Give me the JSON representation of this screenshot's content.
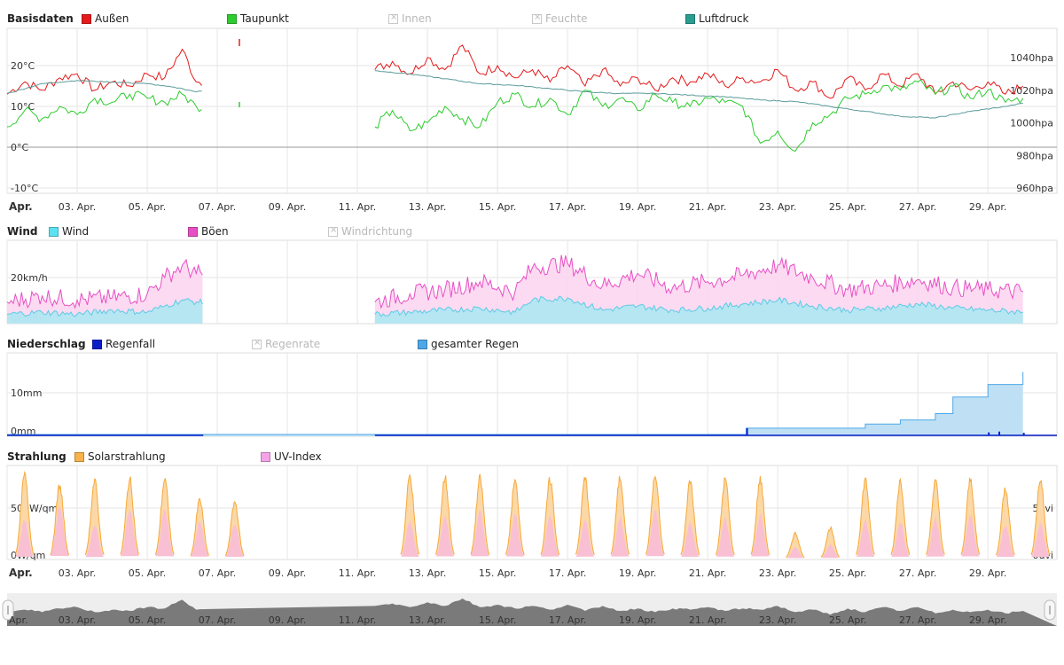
{
  "panels": {
    "basis": {
      "title": "Basisdaten",
      "legend": [
        {
          "label": "Außen",
          "color": "#e41a1c",
          "enabled": true
        },
        {
          "label": "Taupunkt",
          "color": "#2ecc2e",
          "enabled": true
        },
        {
          "label": "Innen",
          "color": "#cccccc",
          "enabled": false
        },
        {
          "label": "Feuchte",
          "color": "#cccccc",
          "enabled": false
        },
        {
          "label": "Luftdruck",
          "color": "#2a9d8f",
          "enabled": true
        }
      ],
      "y_left_ticks": [
        "20°C",
        "10°C",
        "0°C",
        "-10°C"
      ],
      "y_right_ticks": [
        "1040hpa",
        "1020hpa",
        "1000hpa",
        "980hpa",
        "960hpa"
      ]
    },
    "wind": {
      "title": "Wind",
      "legend": [
        {
          "label": "Wind",
          "color": "#5ce1f0",
          "enabled": true
        },
        {
          "label": "Böen",
          "color": "#e84fc4",
          "enabled": true
        },
        {
          "label": "Windrichtung",
          "color": "#cccccc",
          "enabled": false
        }
      ],
      "y_left_ticks": [
        "20km/h",
        "0km/h"
      ]
    },
    "rain": {
      "title": "Niederschlag",
      "legend": [
        {
          "label": "Regenfall",
          "color": "#0b1fc6",
          "enabled": true
        },
        {
          "label": "Regenrate",
          "color": "#cccccc",
          "enabled": false
        },
        {
          "label": "gesamter Regen",
          "color": "#4ea7e8",
          "enabled": true
        }
      ],
      "y_left_ticks": [
        "10mm",
        "0mm"
      ]
    },
    "solar": {
      "title": "Strahlung",
      "legend": [
        {
          "label": "Solarstrahlung",
          "color": "#f7b24a",
          "enabled": true
        },
        {
          "label": "UV-Index",
          "color": "#f4a3e8",
          "enabled": true
        }
      ],
      "y_left_ticks": [
        "500W/qm",
        "0W/qm"
      ],
      "y_right_ticks": [
        "5uvi",
        "0uvi"
      ]
    }
  },
  "x_axis": {
    "first_label": "Apr.",
    "labels": [
      "03. Apr.",
      "05. Apr.",
      "07. Apr.",
      "09. Apr.",
      "11. Apr.",
      "13. Apr.",
      "15. Apr.",
      "17. Apr.",
      "19. Apr.",
      "21. Apr.",
      "23. Apr.",
      "25. Apr.",
      "27. Apr.",
      "29. Apr."
    ]
  },
  "navigator": {
    "first_label": "Apr.",
    "labels": [
      "03. Apr.",
      "05. Apr.",
      "07. Apr.",
      "09. Apr.",
      "11. Apr.",
      "13. Apr.",
      "15. Apr.",
      "17. Apr.",
      "19. Apr.",
      "21. Apr.",
      "23. Apr.",
      "25. Apr.",
      "27. Apr.",
      "29. Apr."
    ]
  },
  "chart_data": [
    {
      "type": "line",
      "title": "Basisdaten",
      "x_range": [
        "2024-04-01",
        "2024-04-30"
      ],
      "y_left": {
        "unit": "°C",
        "range": [
          -10,
          30
        ]
      },
      "y_right": {
        "unit": "hpa",
        "range": [
          960,
          1060
        ]
      },
      "gap_days": [
        6.6,
        11.5
      ],
      "series": [
        {
          "name": "Außen",
          "axis": "left",
          "points": [
            [
              1,
              13
            ],
            [
              1.5,
              16
            ],
            [
              2,
              14
            ],
            [
              2.5,
              17
            ],
            [
              3,
              18
            ],
            [
              3.5,
              14
            ],
            [
              4,
              16
            ],
            [
              4.5,
              15
            ],
            [
              5,
              18
            ],
            [
              5.5,
              17
            ],
            [
              6,
              24
            ],
            [
              6.4,
              16
            ],
            [
              11.5,
              19
            ],
            [
              12,
              21
            ],
            [
              12.5,
              18
            ],
            [
              13,
              22
            ],
            [
              13.5,
              19
            ],
            [
              14,
              25
            ],
            [
              14.5,
              18
            ],
            [
              15,
              20
            ],
            [
              15.5,
              17
            ],
            [
              16,
              19
            ],
            [
              16.5,
              16
            ],
            [
              17,
              20
            ],
            [
              17.5,
              15
            ],
            [
              18,
              19
            ],
            [
              18.5,
              15
            ],
            [
              19,
              17
            ],
            [
              19.5,
              14
            ],
            [
              20,
              17
            ],
            [
              20.5,
              16
            ],
            [
              21,
              18
            ],
            [
              21.5,
              15
            ],
            [
              22,
              17
            ],
            [
              22.5,
              16
            ],
            [
              23,
              19
            ],
            [
              23.5,
              14
            ],
            [
              24,
              16
            ],
            [
              24.5,
              12
            ],
            [
              25,
              17
            ],
            [
              25.5,
              14
            ],
            [
              26,
              18
            ],
            [
              26.5,
              15
            ],
            [
              27,
              18
            ],
            [
              27.5,
              13
            ],
            [
              28,
              16
            ],
            [
              28.5,
              14
            ],
            [
              29,
              16
            ],
            [
              29.5,
              13
            ],
            [
              30,
              15
            ]
          ]
        },
        {
          "name": "Taupunkt",
          "axis": "left",
          "points": [
            [
              1,
              5
            ],
            [
              1.5,
              9
            ],
            [
              2,
              7
            ],
            [
              2.5,
              10
            ],
            [
              3,
              8
            ],
            [
              3.5,
              12
            ],
            [
              4,
              11
            ],
            [
              4.5,
              13
            ],
            [
              5,
              12
            ],
            [
              5.5,
              11
            ],
            [
              6,
              13
            ],
            [
              6.4,
              10
            ],
            [
              11.5,
              5
            ],
            [
              12,
              9
            ],
            [
              12.5,
              4
            ],
            [
              13,
              6
            ],
            [
              13.5,
              10
            ],
            [
              14,
              7
            ],
            [
              14.5,
              5
            ],
            [
              15,
              11
            ],
            [
              15.5,
              13
            ],
            [
              16,
              10
            ],
            [
              16.5,
              12
            ],
            [
              17,
              8
            ],
            [
              17.5,
              14
            ],
            [
              18,
              10
            ],
            [
              18.5,
              12
            ],
            [
              19,
              9
            ],
            [
              19.5,
              13
            ],
            [
              20,
              11
            ],
            [
              20.5,
              10
            ],
            [
              21,
              12
            ],
            [
              21.5,
              11
            ],
            [
              22,
              10
            ],
            [
              22.5,
              1
            ],
            [
              23,
              4
            ],
            [
              23.5,
              -1
            ],
            [
              24,
              6
            ],
            [
              24.5,
              8
            ],
            [
              25,
              12
            ],
            [
              25.5,
              13
            ],
            [
              26,
              15
            ],
            [
              26.5,
              14
            ],
            [
              27,
              16
            ],
            [
              27.5,
              13
            ],
            [
              28,
              15
            ],
            [
              28.5,
              12
            ],
            [
              29,
              14
            ],
            [
              29.5,
              11
            ],
            [
              30,
              12
            ]
          ]
        },
        {
          "name": "Luftdruck",
          "axis": "right",
          "points": [
            [
              1,
              1018
            ],
            [
              2,
              1024
            ],
            [
              3,
              1026
            ],
            [
              4,
              1025
            ],
            [
              5,
              1024
            ],
            [
              6,
              1021
            ],
            [
              6.4,
              1019
            ],
            [
              11.5,
              1032
            ],
            [
              12.5,
              1030
            ],
            [
              13.5,
              1027
            ],
            [
              14.5,
              1024
            ],
            [
              15.5,
              1023
            ],
            [
              16.5,
              1021
            ],
            [
              17.5,
              1019
            ],
            [
              18.5,
              1018
            ],
            [
              19.5,
              1018
            ],
            [
              20.5,
              1017
            ],
            [
              21.5,
              1016
            ],
            [
              22.5,
              1014
            ],
            [
              23.5,
              1013
            ],
            [
              24.5,
              1010
            ],
            [
              25.5,
              1007
            ],
            [
              26.5,
              1004
            ],
            [
              27.5,
              1003
            ],
            [
              28.5,
              1007
            ],
            [
              29.5,
              1010
            ],
            [
              30,
              1012
            ]
          ]
        }
      ]
    },
    {
      "type": "area",
      "title": "Wind",
      "y_left": {
        "unit": "km/h",
        "range": [
          0,
          30
        ]
      },
      "gap_days": [
        6.6,
        11.5
      ],
      "series": [
        {
          "name": "Wind",
          "points": [
            [
              1,
              2
            ],
            [
              2,
              3
            ],
            [
              3,
              2
            ],
            [
              4,
              4
            ],
            [
              5,
              3
            ],
            [
              5.5,
              6
            ],
            [
              6,
              9
            ],
            [
              6.4,
              8
            ],
            [
              11.5,
              2
            ],
            [
              12.5,
              3
            ],
            [
              13.5,
              4
            ],
            [
              14.5,
              5
            ],
            [
              15.5,
              3
            ],
            [
              16,
              9
            ],
            [
              17,
              10
            ],
            [
              18,
              4
            ],
            [
              19,
              6
            ],
            [
              20,
              4
            ],
            [
              21,
              5
            ],
            [
              22,
              7
            ],
            [
              23,
              9
            ],
            [
              24,
              6
            ],
            [
              25,
              4
            ],
            [
              26,
              5
            ],
            [
              27,
              7
            ],
            [
              28,
              5
            ],
            [
              29,
              4
            ],
            [
              30,
              3
            ]
          ]
        },
        {
          "name": "Böen",
          "points": [
            [
              1,
              8
            ],
            [
              2,
              11
            ],
            [
              3,
              9
            ],
            [
              4,
              10
            ],
            [
              5,
              12
            ],
            [
              5.5,
              20
            ],
            [
              6,
              26
            ],
            [
              6.4,
              22
            ],
            [
              11.5,
              8
            ],
            [
              12.5,
              12
            ],
            [
              13.5,
              14
            ],
            [
              14.5,
              18
            ],
            [
              15.5,
              13
            ],
            [
              16,
              25
            ],
            [
              17,
              27
            ],
            [
              18,
              16
            ],
            [
              19,
              22
            ],
            [
              20,
              15
            ],
            [
              21,
              18
            ],
            [
              22,
              21
            ],
            [
              23,
              26
            ],
            [
              24,
              20
            ],
            [
              25,
              14
            ],
            [
              26,
              16
            ],
            [
              27,
              19
            ],
            [
              28,
              15
            ],
            [
              29,
              14
            ],
            [
              30,
              13
            ]
          ]
        }
      ]
    },
    {
      "type": "area",
      "title": "Niederschlag",
      "y_left": {
        "unit": "mm",
        "range": [
          0,
          20
        ]
      },
      "series": [
        {
          "name": "Regenfall",
          "points": [
            [
              1,
              0
            ],
            [
              22,
              0
            ],
            [
              22.1,
              1.5
            ],
            [
              22.2,
              0
            ],
            [
              29,
              0.3
            ],
            [
              30,
              0.2
            ]
          ]
        },
        {
          "name": "gesamter Regen",
          "points": [
            [
              1,
              0
            ],
            [
              22,
              0
            ],
            [
              22.1,
              1.5
            ],
            [
              24.5,
              1.5
            ],
            [
              25.5,
              2.5
            ],
            [
              26.5,
              3.5
            ],
            [
              27.5,
              5
            ],
            [
              28,
              9
            ],
            [
              29,
              12
            ],
            [
              30,
              15
            ]
          ]
        }
      ]
    },
    {
      "type": "area",
      "title": "Strahlung",
      "y_left": {
        "unit": "W/qm",
        "range": [
          0,
          1000
        ]
      },
      "y_right": {
        "unit": "uvi",
        "range": [
          0,
          10
        ]
      },
      "series": [
        {
          "name": "Solarstrahlung",
          "daily_peak": [
            820,
            720,
            760,
            780,
            780,
            580,
            560,
            0,
            0,
            0,
            0,
            820,
            800,
            790,
            760,
            780,
            790,
            800,
            810,
            770,
            780,
            780,
            250,
            300,
            780,
            770,
            760,
            780,
            700,
            780
          ]
        },
        {
          "name": "UV-Index",
          "daily_peak": [
            3.8,
            5.2,
            3.3,
            4.8,
            4.7,
            3.7,
            3.4,
            0,
            0,
            0,
            0,
            3.7,
            4.2,
            4.7,
            4.3,
            4.3,
            3.8,
            4.1,
            4.6,
            3.5,
            4.0,
            4.3,
            1.1,
            1.4,
            3.8,
            3.6,
            4.0,
            4.3,
            3.3,
            3.5
          ]
        }
      ]
    }
  ]
}
